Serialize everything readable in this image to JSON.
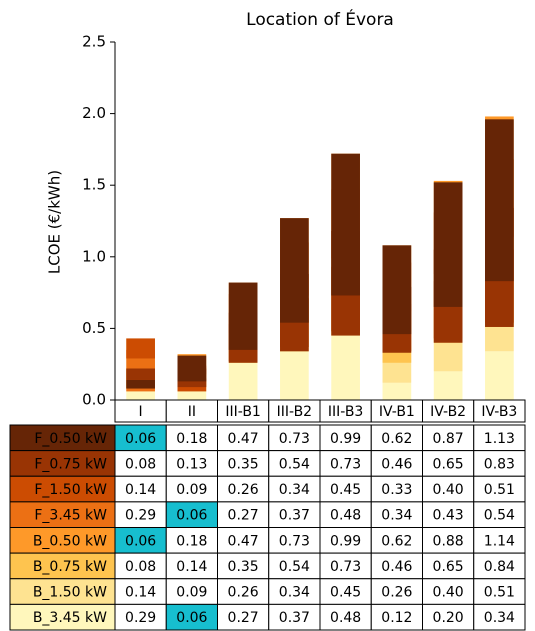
{
  "chart_data": {
    "type": "bar",
    "title": "Location of Évora",
    "y_label": "LCOE (€/kWh)",
    "categories": [
      "I",
      "II",
      "III-B1",
      "III-B2",
      "III-B3",
      "IV-B1",
      "IV-B2",
      "IV-B3"
    ],
    "ylim": [
      0,
      2.5
    ],
    "yticks": [
      {
        "value": 0,
        "label": "0.0"
      },
      0.5,
      {
        "value": 1,
        "label": "1.0"
      },
      1.5,
      {
        "value": 2,
        "label": "2.0"
      },
      2.5
    ],
    "highlight_color": "#17becf",
    "highlight_cells": [
      {
        "series": 0,
        "category": 0
      },
      {
        "series": 4,
        "category": 0
      },
      {
        "series": 3,
        "category": 1
      },
      {
        "series": 7,
        "category": 1
      }
    ],
    "series": [
      {
        "name": "F_0.50 kW",
        "color": "#662506",
        "values": [
          0.06,
          0.18,
          0.47,
          0.73,
          0.99,
          0.62,
          0.87,
          1.13
        ],
        "value_labels": [
          "0.06",
          "0.18",
          "0.47",
          "0.73",
          "0.99",
          "0.62",
          "0.87",
          "1.13"
        ]
      },
      {
        "name": "F_0.75 kW",
        "color": "#993404",
        "values": [
          0.08,
          0.13,
          0.35,
          0.54,
          0.73,
          0.46,
          0.65,
          0.83
        ],
        "value_labels": [
          "0.08",
          "0.13",
          "0.35",
          "0.54",
          "0.73",
          "0.46",
          "0.65",
          "0.83"
        ]
      },
      {
        "name": "F_1.50 kW",
        "color": "#cc4c02",
        "values": [
          0.14,
          0.09,
          0.26,
          0.34,
          0.45,
          0.33,
          0.4,
          0.51
        ],
        "value_labels": [
          "0.14",
          "0.09",
          "0.26",
          "0.34",
          "0.45",
          "0.33",
          "0.40",
          "0.51"
        ]
      },
      {
        "name": "F_3.45 kW",
        "color": "#ec7014",
        "values": [
          0.29,
          0.06,
          0.27,
          0.37,
          0.48,
          0.34,
          0.43,
          0.54
        ],
        "value_labels": [
          "0.29",
          "0.06",
          "0.27",
          "0.37",
          "0.48",
          "0.34",
          "0.43",
          "0.54"
        ]
      },
      {
        "name": "B_0.50 kW",
        "color": "#fe9929",
        "values": [
          0.06,
          0.18,
          0.47,
          0.73,
          0.99,
          0.62,
          0.88,
          1.14
        ],
        "value_labels": [
          "0.06",
          "0.18",
          "0.47",
          "0.73",
          "0.99",
          "0.62",
          "0.88",
          "1.14"
        ]
      },
      {
        "name": "B_0.75 kW",
        "color": "#fec44f",
        "values": [
          0.08,
          0.14,
          0.35,
          0.54,
          0.73,
          0.46,
          0.65,
          0.84
        ],
        "value_labels": [
          "0.08",
          "0.14",
          "0.35",
          "0.54",
          "0.73",
          "0.46",
          "0.65",
          "0.84"
        ]
      },
      {
        "name": "B_1.50 kW",
        "color": "#fee391",
        "values": [
          0.14,
          0.09,
          0.26,
          0.34,
          0.45,
          0.26,
          0.4,
          0.51
        ],
        "value_labels": [
          "0.14",
          "0.09",
          "0.26",
          "0.34",
          "0.45",
          "0.26",
          "0.40",
          "0.51"
        ]
      },
      {
        "name": "B_3.45 kW",
        "color": "#fff7bc",
        "values": [
          0.29,
          0.06,
          0.27,
          0.37,
          0.48,
          0.12,
          0.2,
          0.34
        ],
        "value_labels": [
          "0.29",
          "0.06",
          "0.27",
          "0.37",
          "0.48",
          "0.12",
          "0.20",
          "0.34"
        ]
      }
    ]
  }
}
